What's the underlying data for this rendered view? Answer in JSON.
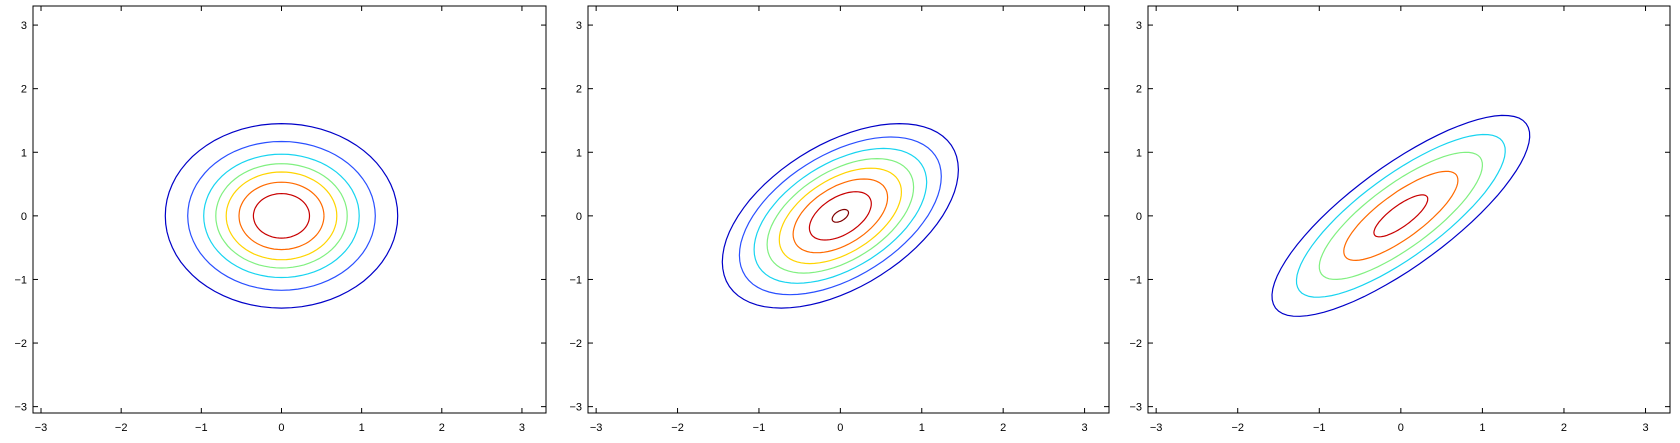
{
  "chart_data": [
    {
      "type": "contour",
      "xlim": [
        -3.1,
        3.3
      ],
      "ylim": [
        -3.1,
        3.3
      ],
      "xticks": [
        -3,
        -2,
        -1,
        0,
        1,
        2,
        3
      ],
      "yticks": [
        -3,
        -2,
        -1,
        0,
        1,
        2,
        3
      ],
      "xtick_labels": [
        "−3",
        "−2",
        "−1",
        "0",
        "1",
        "2",
        "3"
      ],
      "ytick_labels": [
        "−3",
        "−2",
        "−1",
        "0",
        "1",
        "2",
        "3"
      ],
      "grid": false,
      "distribution": {
        "mean": [
          0,
          0
        ],
        "variance_x": 1,
        "variance_y": 1,
        "correlation": 0
      },
      "levels": [
        {
          "color": "#0000c8",
          "radius": 1.45
        },
        {
          "color": "#2a50ff",
          "radius": 1.17
        },
        {
          "color": "#18d4f0",
          "radius": 0.97
        },
        {
          "color": "#80f080",
          "radius": 0.82
        },
        {
          "color": "#ffd400",
          "radius": 0.69
        },
        {
          "color": "#ff6a00",
          "radius": 0.53
        },
        {
          "color": "#c80000",
          "radius": 0.35
        }
      ]
    },
    {
      "type": "contour",
      "xlim": [
        -3.1,
        3.3
      ],
      "ylim": [
        -3.1,
        3.3
      ],
      "xticks": [
        -3,
        -2,
        -1,
        0,
        1,
        2,
        3
      ],
      "yticks": [
        -3,
        -2,
        -1,
        0,
        1,
        2,
        3
      ],
      "xtick_labels": [
        "−3",
        "−2",
        "−1",
        "0",
        "1",
        "2",
        "3"
      ],
      "ytick_labels": [
        "−3",
        "−2",
        "−1",
        "0",
        "1",
        "2",
        "3"
      ],
      "grid": false,
      "distribution": {
        "mean": [
          0,
          0
        ],
        "variance_x": 1,
        "variance_y": 1,
        "correlation": 0.5
      },
      "levels": [
        {
          "color": "#0000c8",
          "radius": 1.45
        },
        {
          "color": "#2a50ff",
          "radius": 1.24
        },
        {
          "color": "#18d4f0",
          "radius": 1.06
        },
        {
          "color": "#80f080",
          "radius": 0.9
        },
        {
          "color": "#ffd400",
          "radius": 0.75
        },
        {
          "color": "#ff6a00",
          "radius": 0.58
        },
        {
          "color": "#c80000",
          "radius": 0.38
        },
        {
          "color": "#800000",
          "radius": 0.1
        }
      ]
    },
    {
      "type": "contour",
      "xlim": [
        -3.1,
        3.3
      ],
      "ylim": [
        -3.1,
        3.3
      ],
      "xticks": [
        -3,
        -2,
        -1,
        0,
        1,
        2,
        3
      ],
      "yticks": [
        -3,
        -2,
        -1,
        0,
        1,
        2,
        3
      ],
      "xtick_labels": [
        "−3",
        "−2",
        "−1",
        "0",
        "1",
        "2",
        "3"
      ],
      "ytick_labels": [
        "−3",
        "−2",
        "−1",
        "0",
        "1",
        "2",
        "3"
      ],
      "grid": false,
      "distribution": {
        "mean": [
          0,
          0
        ],
        "variance_x": 1,
        "variance_y": 1,
        "correlation": 0.8
      },
      "levels": [
        {
          "color": "#0000c8",
          "radius": 1.58
        },
        {
          "color": "#18d4f0",
          "radius": 1.28
        },
        {
          "color": "#80f080",
          "radius": 1.0
        },
        {
          "color": "#ff6a00",
          "radius": 0.7
        },
        {
          "color": "#c80000",
          "radius": 0.33
        }
      ]
    }
  ]
}
